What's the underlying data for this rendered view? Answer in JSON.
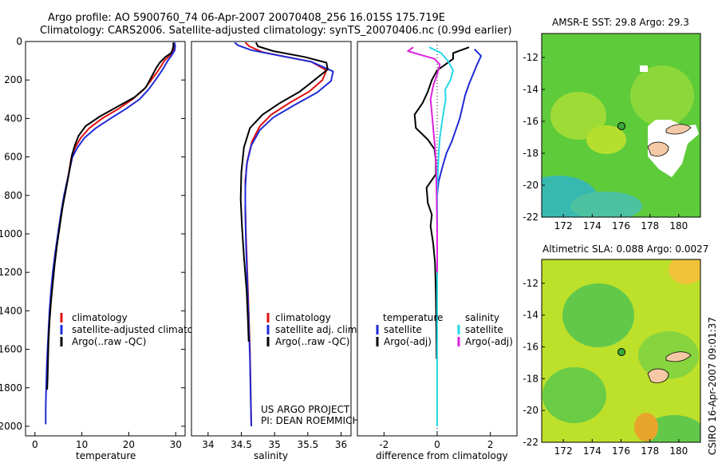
{
  "title_line1": "Argo profile: AO 5900760_74 06-Apr-2007 20070408_256 16.015S 175.719E",
  "title_line2": "Climatology: CARS2006. Satellite-adjusted climatology: synTS_20070406.nc (0.99d earlier)",
  "side_stamp": "CSIRO 16-Apr-2007 09:01:37",
  "project_line1": "US ARGO PROJECT",
  "project_line2": "PI: DEAN ROEMMICH",
  "colors": {
    "red": "#e01010",
    "blue": "#1f2bd6",
    "black": "#000000",
    "cyan": "#22d8e8",
    "magenta": "#dd22dd"
  },
  "chart_data": [
    {
      "type": "line",
      "id": "temperature",
      "xlabel": "temperature",
      "xlim": [
        -2,
        32
      ],
      "ylim": [
        2050,
        0
      ],
      "xticks": [
        "0",
        "10",
        "20",
        "30"
      ],
      "yticks": [
        "0",
        "200",
        "400",
        "600",
        "800",
        "1000",
        "1200",
        "1400",
        "1600",
        "1800",
        "2000"
      ],
      "legend": [
        "climatology",
        "satellite-adjusted climatology",
        "Argo(..raw -QC)"
      ],
      "series": [
        {
          "name": "climatology",
          "color": "red",
          "points": [
            [
              29.6,
              5
            ],
            [
              29.7,
              20
            ],
            [
              29.5,
              45
            ],
            [
              28.8,
              70
            ],
            [
              27.6,
              100
            ],
            [
              26.3,
              150
            ],
            [
              24.8,
              200
            ],
            [
              23.2,
              250
            ],
            [
              20.8,
              300
            ],
            [
              17.8,
              350
            ],
            [
              14.3,
              400
            ],
            [
              11.6,
              450
            ],
            [
              9.8,
              500
            ],
            [
              8.6,
              550
            ],
            [
              7.8,
              600
            ],
            [
              7.1,
              700
            ],
            [
              6.3,
              800
            ],
            [
              5.6,
              900
            ],
            [
              5.0,
              1000
            ],
            [
              4.4,
              1100
            ],
            [
              3.9,
              1200
            ],
            [
              3.5,
              1300
            ],
            [
              3.2,
              1400
            ],
            [
              3.0,
              1500
            ],
            [
              2.8,
              1600
            ],
            [
              2.6,
              1700
            ],
            [
              2.5,
              1800
            ]
          ]
        },
        {
          "name": "satellite-adjusted climatology",
          "color": "blue",
          "points": [
            [
              29.7,
              5
            ],
            [
              29.9,
              20
            ],
            [
              29.8,
              45
            ],
            [
              29.2,
              70
            ],
            [
              28.3,
              100
            ],
            [
              27.1,
              150
            ],
            [
              25.7,
              200
            ],
            [
              24.2,
              250
            ],
            [
              22.3,
              300
            ],
            [
              19.4,
              350
            ],
            [
              16.1,
              400
            ],
            [
              13.0,
              450
            ],
            [
              10.6,
              500
            ],
            [
              9.1,
              550
            ],
            [
              8.0,
              600
            ],
            [
              7.1,
              700
            ],
            [
              6.2,
              800
            ],
            [
              5.5,
              900
            ],
            [
              4.9,
              1000
            ],
            [
              4.3,
              1100
            ],
            [
              3.8,
              1200
            ],
            [
              3.4,
              1300
            ],
            [
              3.1,
              1400
            ],
            [
              2.9,
              1500
            ],
            [
              2.7,
              1600
            ],
            [
              2.5,
              1700
            ],
            [
              2.4,
              1800
            ],
            [
              2.3,
              1900
            ],
            [
              2.3,
              1990
            ]
          ]
        },
        {
          "name": "Argo(..raw -QC)",
          "color": "black",
          "points": [
            [
              29.5,
              5
            ],
            [
              29.5,
              25
            ],
            [
              29.3,
              45
            ],
            [
              29.0,
              60
            ],
            [
              27.8,
              80
            ],
            [
              26.6,
              110
            ],
            [
              25.8,
              140
            ],
            [
              24.7,
              190
            ],
            [
              23.6,
              240
            ],
            [
              21.2,
              290
            ],
            [
              17.5,
              340
            ],
            [
              13.8,
              390
            ],
            [
              10.8,
              440
            ],
            [
              9.3,
              490
            ],
            [
              8.5,
              540
            ],
            [
              7.9,
              590
            ],
            [
              7.3,
              680
            ],
            [
              6.6,
              770
            ],
            [
              5.9,
              860
            ],
            [
              5.3,
              960
            ],
            [
              4.7,
              1060
            ],
            [
              4.2,
              1160
            ],
            [
              3.8,
              1260
            ],
            [
              3.4,
              1360
            ],
            [
              3.1,
              1460
            ],
            [
              2.9,
              1560
            ],
            [
              2.8,
              1660
            ],
            [
              2.7,
              1760
            ],
            [
              2.6,
              1810
            ]
          ]
        }
      ]
    },
    {
      "type": "line",
      "id": "salinity",
      "xlabel": "salinity",
      "xlim": [
        33.75,
        36.15
      ],
      "ylim": [
        2050,
        0
      ],
      "xticks": [
        "34",
        "34.5",
        "35",
        "35.5",
        "36"
      ],
      "legend": [
        "climatology",
        "satellite adj. clim.",
        "Argo(..raw -QC)"
      ],
      "series": [
        {
          "name": "climatology",
          "color": "red",
          "points": [
            [
              34.56,
              5
            ],
            [
              34.62,
              25
            ],
            [
              34.82,
              55
            ],
            [
              35.18,
              80
            ],
            [
              35.55,
              105
            ],
            [
              35.78,
              150
            ],
            [
              35.72,
              200
            ],
            [
              35.52,
              260
            ],
            [
              35.22,
              320
            ],
            [
              34.95,
              380
            ],
            [
              34.78,
              440
            ],
            [
              34.66,
              520
            ],
            [
              34.59,
              620
            ],
            [
              34.56,
              720
            ],
            [
              34.56,
              850
            ],
            [
              34.57,
              1000
            ],
            [
              34.59,
              1200
            ],
            [
              34.61,
              1400
            ],
            [
              34.63,
              1600
            ],
            [
              34.64,
              1800
            ],
            [
              34.65,
              2000
            ]
          ]
        },
        {
          "name": "satellite adj. clim.",
          "color": "blue",
          "points": [
            [
              34.4,
              5
            ],
            [
              34.45,
              20
            ],
            [
              34.65,
              45
            ],
            [
              35.1,
              75
            ],
            [
              35.55,
              105
            ],
            [
              35.88,
              155
            ],
            [
              35.85,
              205
            ],
            [
              35.64,
              265
            ],
            [
              35.3,
              330
            ],
            [
              34.98,
              395
            ],
            [
              34.78,
              460
            ],
            [
              34.65,
              540
            ],
            [
              34.58,
              640
            ],
            [
              34.56,
              760
            ],
            [
              34.56,
              900
            ],
            [
              34.57,
              1050
            ],
            [
              34.59,
              1250
            ],
            [
              34.61,
              1450
            ],
            [
              34.63,
              1650
            ],
            [
              34.64,
              1850
            ],
            [
              34.65,
              2000
            ]
          ]
        },
        {
          "name": "Argo(..raw -QC)",
          "color": "black",
          "points": [
            [
              34.72,
              5
            ],
            [
              34.75,
              25
            ],
            [
              34.98,
              50
            ],
            [
              35.45,
              80
            ],
            [
              35.78,
              110
            ],
            [
              35.8,
              145
            ],
            [
              35.6,
              200
            ],
            [
              35.38,
              260
            ],
            [
              35.08,
              320
            ],
            [
              34.82,
              380
            ],
            [
              34.63,
              450
            ],
            [
              34.54,
              550
            ],
            [
              34.5,
              680
            ],
            [
              34.49,
              820
            ],
            [
              34.51,
              960
            ],
            [
              34.54,
              1120
            ],
            [
              34.58,
              1300
            ],
            [
              34.6,
              1450
            ],
            [
              34.61,
              1560
            ]
          ]
        }
      ]
    },
    {
      "type": "line",
      "id": "difference",
      "xlabel": "difference from climatology",
      "xlim": [
        -3,
        3
      ],
      "ylim": [
        2050,
        0
      ],
      "xticks": [
        "-2",
        "0",
        "2"
      ],
      "legend_temperature": {
        "heading": "temperature",
        "items": [
          "satellite",
          "Argo(-adj)"
        ]
      },
      "legend_salinity": {
        "heading": "salinity",
        "items": [
          "satellite",
          "Argo(-adj)"
        ]
      },
      "series": [
        {
          "name": "temperature satellite",
          "color": "blue",
          "points": [
            [
              1.4,
              40
            ],
            [
              1.65,
              75
            ],
            [
              1.5,
              120
            ],
            [
              1.35,
              170
            ],
            [
              1.2,
              220
            ],
            [
              1.05,
              280
            ],
            [
              0.95,
              340
            ],
            [
              0.85,
              400
            ],
            [
              0.7,
              460
            ],
            [
              0.55,
              520
            ],
            [
              0.35,
              580
            ],
            [
              0.2,
              650
            ],
            [
              0.05,
              730
            ],
            [
              0.0,
              800
            ],
            [
              0.0,
              1000
            ],
            [
              0.0,
              1500
            ],
            [
              0.0,
              2000
            ]
          ]
        },
        {
          "name": "temperature Argo(-adj)",
          "color": "black",
          "points": [
            [
              1.2,
              30
            ],
            [
              0.6,
              60
            ],
            [
              0.6,
              90
            ],
            [
              0.3,
              120
            ],
            [
              0.0,
              150
            ],
            [
              -0.2,
              200
            ],
            [
              -0.35,
              260
            ],
            [
              -0.55,
              320
            ],
            [
              -0.85,
              380
            ],
            [
              -0.8,
              450
            ],
            [
              -0.35,
              510
            ],
            [
              -0.1,
              560
            ],
            [
              -0.05,
              620
            ],
            [
              -0.05,
              690
            ],
            [
              -0.4,
              760
            ],
            [
              -0.35,
              840
            ],
            [
              -0.2,
              900
            ],
            [
              -0.25,
              960
            ],
            [
              -0.15,
              1050
            ],
            [
              -0.08,
              1150
            ],
            [
              -0.05,
              1300
            ],
            [
              -0.03,
              1500
            ],
            [
              -0.02,
              1650
            ]
          ]
        },
        {
          "name": "salinity satellite",
          "color": "cyan",
          "points": [
            [
              -0.3,
              30
            ],
            [
              0.15,
              60
            ],
            [
              0.4,
              100
            ],
            [
              0.6,
              150
            ],
            [
              0.5,
              200
            ],
            [
              0.3,
              250
            ],
            [
              0.32,
              300
            ],
            [
              0.2,
              400
            ],
            [
              0.1,
              500
            ],
            [
              0.05,
              600
            ],
            [
              0.02,
              700
            ],
            [
              0.0,
              800
            ],
            [
              0.0,
              1000
            ],
            [
              0.0,
              1500
            ],
            [
              0.0,
              2000
            ]
          ]
        },
        {
          "name": "salinity Argo(-adj)",
          "color": "magenta",
          "points": [
            [
              -0.9,
              30
            ],
            [
              -1.1,
              50
            ],
            [
              -0.6,
              70
            ],
            [
              -0.1,
              90
            ],
            [
              0.1,
              120
            ],
            [
              0.0,
              170
            ],
            [
              -0.15,
              230
            ],
            [
              -0.25,
              300
            ],
            [
              -0.2,
              370
            ],
            [
              -0.15,
              450
            ],
            [
              -0.08,
              550
            ],
            [
              -0.04,
              650
            ],
            [
              -0.02,
              800
            ],
            [
              0.0,
              1000
            ],
            [
              0.0,
              1200
            ]
          ]
        }
      ]
    },
    {
      "type": "heatmap",
      "id": "sst_map",
      "title": "AMSR-E SST: 29.8 Argo: 29.3",
      "xticks": [
        "172",
        "174",
        "176",
        "178",
        "180"
      ],
      "yticks": [
        "-12",
        "-14",
        "-16",
        "-18",
        "-20",
        "-22"
      ],
      "xlim": [
        170.5,
        181.5
      ],
      "ylim": [
        -22,
        -10.5
      ]
    },
    {
      "type": "heatmap",
      "id": "sla_map",
      "title": "Altimetric SLA: 0.088 Argo: 0.0027",
      "xticks": [
        "172",
        "174",
        "176",
        "178",
        "180"
      ],
      "yticks": [
        "-12",
        "-14",
        "-16",
        "-18",
        "-20",
        "-22"
      ],
      "xlim": [
        170.5,
        181.5
      ],
      "ylim": [
        -22,
        -10.5
      ]
    }
  ]
}
